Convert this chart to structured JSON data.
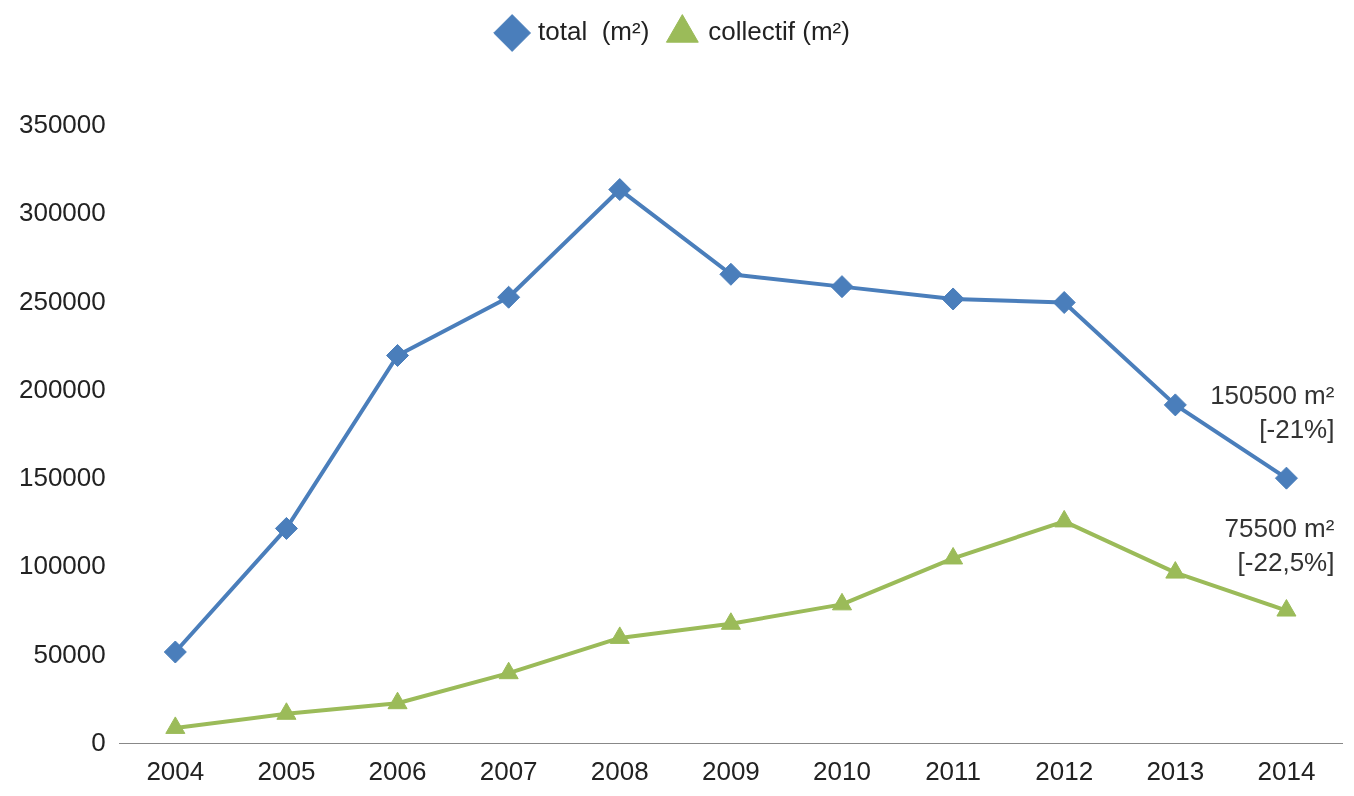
{
  "chart_data": {
    "type": "line",
    "categories": [
      "2004",
      "2005",
      "2006",
      "2007",
      "2008",
      "2009",
      "2010",
      "2011",
      "2012",
      "2013",
      "2014"
    ],
    "series": [
      {
        "name": "total  (m²)",
        "color": "#4a7ebb",
        "marker": "diamond",
        "values": [
          52000,
          122000,
          220000,
          253000,
          314000,
          266000,
          259000,
          252000,
          250000,
          192000,
          150500
        ]
      },
      {
        "name": "collectif (m²)",
        "color": "#9bbb59",
        "marker": "triangle",
        "values": [
          9000,
          17000,
          23000,
          40000,
          60000,
          68000,
          79000,
          105000,
          126000,
          97000,
          75500
        ]
      }
    ],
    "ylim": [
      0,
      350000
    ],
    "yticks": [
      0,
      50000,
      100000,
      150000,
      200000,
      250000,
      300000,
      350000
    ],
    "grid": false,
    "legend": "top",
    "annotations": [
      {
        "text": "150500 m²\n[-21%]",
        "x": "2014",
        "y": 150500
      },
      {
        "text": "75500 m²\n[-22,5%]",
        "x": "2014",
        "y": 75500
      }
    ]
  }
}
